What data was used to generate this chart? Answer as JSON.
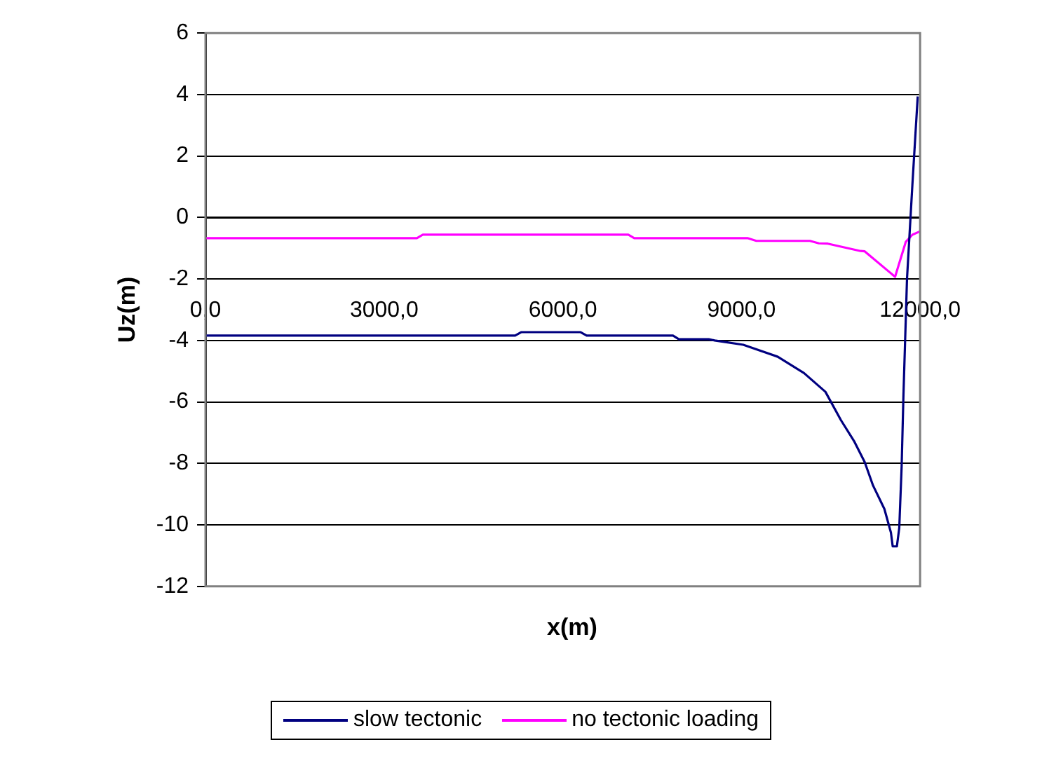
{
  "chart_data": {
    "type": "line",
    "xlabel": "x(m)",
    "ylabel": "Uz(m)",
    "xlim": [
      0,
      12000
    ],
    "xticks": [
      {
        "value": 0,
        "label": "0,0"
      },
      {
        "value": 3000,
        "label": "3000,0"
      },
      {
        "value": 6000,
        "label": "6000,0"
      },
      {
        "value": 9000,
        "label": "9000,0"
      },
      {
        "value": 12000,
        "label": "12000,0"
      }
    ],
    "ylim": [
      -12,
      6
    ],
    "yticks": [
      -12,
      -10,
      -8,
      -6,
      -4,
      -2,
      0,
      2,
      4,
      6
    ],
    "grid": "y",
    "legend": "bottom",
    "marker": "none",
    "line_style": "solid",
    "series": [
      {
        "name": "slow tectonic",
        "color": "#000080",
        "x": [
          0,
          5200,
          5300,
          6300,
          6400,
          7850,
          7950,
          8450,
          8550,
          9030,
          9610,
          10050,
          10410,
          10670,
          10890,
          11070,
          11210,
          11400,
          11510,
          11540,
          11610,
          11650,
          11690,
          11720,
          11780,
          11870,
          11960
        ],
        "values": [
          -3.84,
          -3.84,
          -3.73,
          -3.73,
          -3.84,
          -3.84,
          -3.96,
          -3.96,
          -4.0,
          -4.14,
          -4.53,
          -5.06,
          -5.67,
          -6.59,
          -7.27,
          -7.96,
          -8.72,
          -9.48,
          -10.25,
          -10.7,
          -10.7,
          -10.1,
          -8.1,
          -5.8,
          -2.0,
          1.05,
          3.94
        ]
      },
      {
        "name": "no tectonic loading",
        "color": "#ff00ff",
        "x": [
          0,
          3550,
          3650,
          7100,
          7200,
          9100,
          9250,
          10150,
          10300,
          10450,
          11000,
          11070,
          11580,
          11760,
          11870,
          12000
        ],
        "values": [
          -0.67,
          -0.67,
          -0.56,
          -0.56,
          -0.67,
          -0.67,
          -0.76,
          -0.76,
          -0.84,
          -0.85,
          -1.09,
          -1.1,
          -1.93,
          -0.79,
          -0.56,
          -0.45
        ]
      }
    ]
  }
}
